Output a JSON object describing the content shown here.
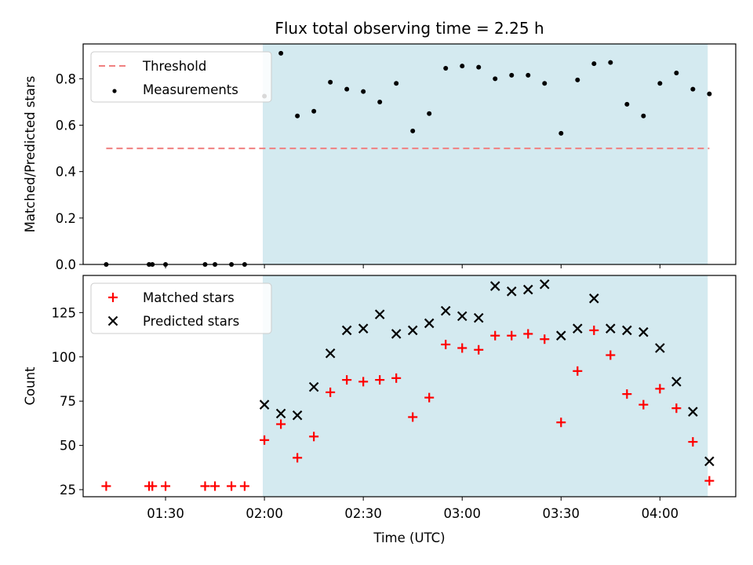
{
  "chart_data": {
    "title": "Flux total observing time = 2.25 h",
    "xlabel": "Time (UTC)",
    "x_tick_labels": [
      "01:30",
      "02:00",
      "02:30",
      "03:00",
      "03:30",
      "04:00"
    ],
    "x_range": [
      "01:05",
      "04:23"
    ],
    "shaded_interval": [
      "01:59:30",
      "04:14:30"
    ],
    "shade_color": "#d4eaf0",
    "grid": false,
    "panels": [
      {
        "type": "scatter",
        "ylabel": "Matched/Predicted stars",
        "ylim": [
          0,
          0.95
        ],
        "y_tick_labels": [
          "0.0",
          "0.2",
          "0.4",
          "0.6",
          "0.8"
        ],
        "legend_position": "top-left",
        "series": [
          {
            "name": "Threshold",
            "type": "line",
            "style": "dashed",
            "color": "#f08080",
            "x": [
              "01:12",
              "04:15"
            ],
            "y": [
              0.5,
              0.5
            ]
          },
          {
            "name": "Measurements",
            "type": "scatter",
            "marker": "dot",
            "color": "#000000",
            "x": [
              "01:12",
              "01:25",
              "01:26",
              "01:30",
              "01:42",
              "01:45",
              "01:50",
              "01:54",
              "02:00",
              "02:05",
              "02:10",
              "02:15",
              "02:20",
              "02:25",
              "02:30",
              "02:35",
              "02:40",
              "02:45",
              "02:50",
              "02:55",
              "03:00",
              "03:05",
              "03:10",
              "03:15",
              "03:20",
              "03:25",
              "03:30",
              "03:35",
              "03:40",
              "03:45",
              "03:50",
              "03:55",
              "04:00",
              "04:05",
              "04:10",
              "04:15"
            ],
            "y": [
              0,
              0,
              0,
              0,
              0,
              0,
              0,
              0,
              0.725,
              0.91,
              0.64,
              0.66,
              0.785,
              0.755,
              0.745,
              0.7,
              0.78,
              0.575,
              0.65,
              0.845,
              0.855,
              0.85,
              0.8,
              0.815,
              0.815,
              0.78,
              0.565,
              0.795,
              0.865,
              0.87,
              0.69,
              0.64,
              0.78,
              0.825,
              0.755,
              0.735
            ]
          }
        ]
      },
      {
        "type": "scatter",
        "ylabel": "Count",
        "ylim": [
          21,
          146
        ],
        "y_tick_labels": [
          "25",
          "50",
          "75",
          "100",
          "125"
        ],
        "legend_position": "top-left",
        "series": [
          {
            "name": "Matched stars",
            "type": "scatter",
            "marker": "plus",
            "color": "#ff0000",
            "x": [
              "01:12",
              "01:25",
              "01:26",
              "01:30",
              "01:42",
              "01:45",
              "01:50",
              "01:54",
              "02:00",
              "02:05",
              "02:10",
              "02:15",
              "02:20",
              "02:25",
              "02:30",
              "02:35",
              "02:40",
              "02:45",
              "02:50",
              "02:55",
              "03:00",
              "03:05",
              "03:10",
              "03:15",
              "03:20",
              "03:25",
              "03:30",
              "03:35",
              "03:40",
              "03:45",
              "03:50",
              "03:55",
              "04:00",
              "04:05",
              "04:10",
              "04:15"
            ],
            "y": [
              27,
              27,
              27,
              27,
              27,
              27,
              27,
              27,
              53,
              62,
              43,
              55,
              80,
              87,
              86,
              87,
              88,
              66,
              77,
              107,
              105,
              104,
              112,
              112,
              113,
              110,
              63,
              92,
              115,
              101,
              79,
              73,
              82,
              71,
              52,
              30
            ]
          },
          {
            "name": "Predicted stars",
            "type": "scatter",
            "marker": "x",
            "color": "#000000",
            "x": [
              "02:00",
              "02:05",
              "02:10",
              "02:15",
              "02:20",
              "02:25",
              "02:30",
              "02:35",
              "02:40",
              "02:45",
              "02:50",
              "02:55",
              "03:00",
              "03:05",
              "03:10",
              "03:15",
              "03:20",
              "03:25",
              "03:30",
              "03:35",
              "03:40",
              "03:45",
              "03:50",
              "03:55",
              "04:00",
              "04:05",
              "04:10",
              "04:15"
            ],
            "y": [
              73,
              68,
              67,
              83,
              102,
              115,
              116,
              124,
              113,
              115,
              119,
              126,
              123,
              122,
              140,
              137,
              138,
              141,
              112,
              116,
              133,
              116,
              115,
              114,
              105,
              86,
              69,
              41
            ]
          }
        ]
      }
    ]
  }
}
